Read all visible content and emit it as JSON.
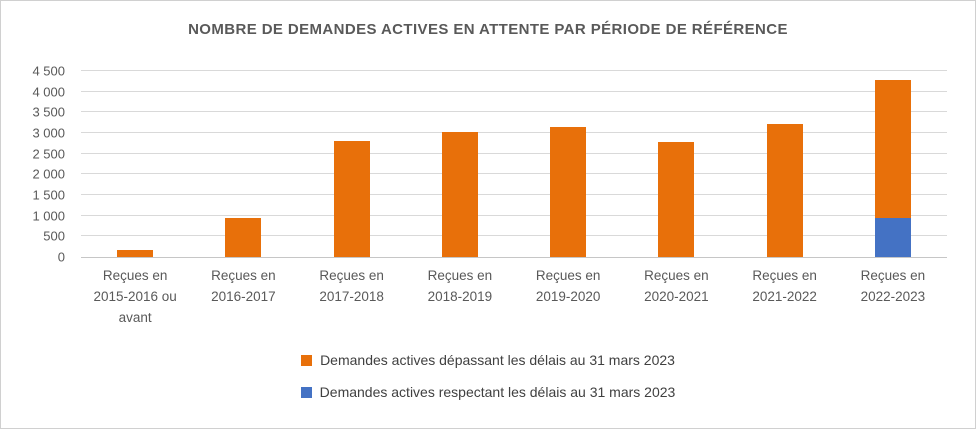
{
  "frame": {
    "background": "#ffffff",
    "border_color": "#d0d0d0",
    "title_color": "#595959",
    "axis_text_color": "#595959",
    "gridline_color": "#d9d9d9",
    "legend_text_color": "#404040"
  },
  "chart_data": {
    "type": "bar",
    "stacked": true,
    "title": "NOMBRE DE DEMANDES ACTIVES EN ATTENTE PAR PÉRIODE DE RÉFÉRENCE",
    "xlabel": "",
    "ylabel": "",
    "ylim": [
      0,
      4500
    ],
    "ytick_step": 500,
    "yticks": [
      "0",
      "500",
      "1 000",
      "1 500",
      "2 000",
      "2 500",
      "3 000",
      "3 500",
      "4 000",
      "4 500"
    ],
    "grid": true,
    "legend_position": "bottom",
    "categories": [
      {
        "label": "Reçues en 2015-2016 ou avant",
        "lines": [
          "Reçues en",
          "2015-2016 ou",
          "avant"
        ]
      },
      {
        "label": "Reçues en 2016-2017",
        "lines": [
          "Reçues en",
          "2016-2017"
        ]
      },
      {
        "label": "Reçues en 2017-2018",
        "lines": [
          "Reçues en",
          "2017-2018"
        ]
      },
      {
        "label": "Reçues en 2018-2019",
        "lines": [
          "Reçues en",
          "2018-2019"
        ]
      },
      {
        "label": "Reçues en 2019-2020",
        "lines": [
          "Reçues en",
          "2019-2020"
        ]
      },
      {
        "label": "Reçues en 2020-2021",
        "lines": [
          "Reçues en",
          "2020-2021"
        ]
      },
      {
        "label": "Reçues en 2021-2022",
        "lines": [
          "Reçues en",
          "2021-2022"
        ]
      },
      {
        "label": "Reçues en 2022-2023",
        "lines": [
          "Reçues en",
          "2022-2023"
        ]
      }
    ],
    "series": [
      {
        "name": "Demandes actives dépassant les délais au 31 mars 2023",
        "color": "#e8700a",
        "values": [
          170,
          950,
          2800,
          3030,
          3150,
          2780,
          3220,
          3330
        ]
      },
      {
        "name": "Demandes actives respectant les délais au 31 mars 2023",
        "color": "#4472c4",
        "values": [
          0,
          0,
          0,
          0,
          0,
          0,
          0,
          950
        ]
      }
    ]
  }
}
